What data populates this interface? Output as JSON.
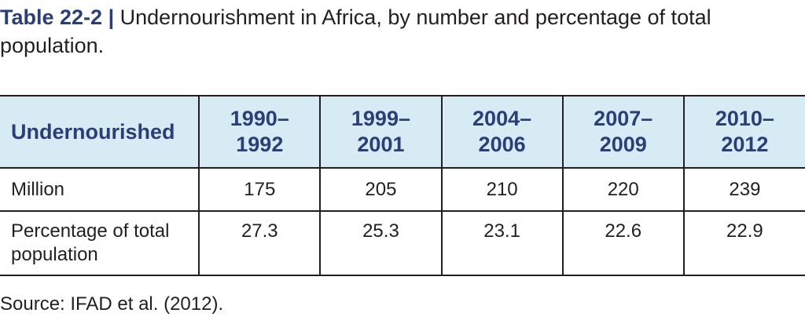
{
  "caption": {
    "number": "Table 22-2",
    "separator": "|",
    "title": "Undernourishment in Africa, by number and percentage of total population."
  },
  "table": {
    "header_label": "Undernourished",
    "columns": [
      {
        "line1": "1990–",
        "line2": "1992"
      },
      {
        "line1": "1999–",
        "line2": "2001"
      },
      {
        "line1": "2004–",
        "line2": "2006"
      },
      {
        "line1": "2007–",
        "line2": "2009"
      },
      {
        "line1": "2010–",
        "line2": "2012"
      }
    ],
    "rows": [
      {
        "label": "Million",
        "values": [
          "175",
          "205",
          "210",
          "220",
          "239"
        ]
      },
      {
        "label_line1": "Percentage of total",
        "label_line2": "population",
        "values": [
          "27.3",
          "25.3",
          "23.1",
          "22.6",
          "22.9"
        ]
      }
    ]
  },
  "source": "Source: IFAD et al. (2012).",
  "colors": {
    "header_background": "#d6ebf4",
    "header_text": "#2c3e78",
    "body_text": "#231f20",
    "rule": "#231f20"
  }
}
